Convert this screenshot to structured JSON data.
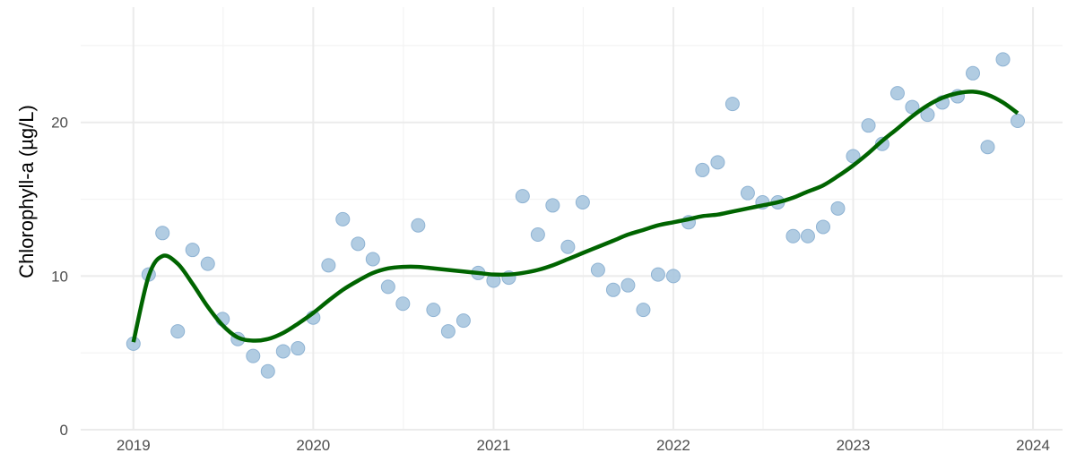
{
  "chart_data": {
    "type": "scatter",
    "title": "",
    "xlabel": "",
    "ylabel": "Chlorophyll-a (µg/L)",
    "x_axis": "date",
    "xlim": [
      "2018-09-16",
      "2024-03-01"
    ],
    "ylim": [
      0,
      27.5
    ],
    "x_ticks": [
      "2019",
      "2020",
      "2021",
      "2022",
      "2023",
      "2024"
    ],
    "y_ticks": [
      0,
      10,
      20
    ],
    "grid": true,
    "legend": "none",
    "colors": {
      "points_fill": "#a9c6df",
      "points_stroke": "#8fb3d3",
      "smooth_line": "#006400",
      "grid_major": "#ebebeb",
      "grid_minor": "#f3f3f3"
    },
    "series": [
      {
        "type": "scatter",
        "x": [
          "2019-01-01",
          "2019-02-01",
          "2019-03-01",
          "2019-04-01",
          "2019-05-01",
          "2019-06-01",
          "2019-07-01",
          "2019-08-01",
          "2019-09-01",
          "2019-10-01",
          "2019-11-01",
          "2019-12-01",
          "2020-01-01",
          "2020-02-01",
          "2020-03-01",
          "2020-04-01",
          "2020-05-01",
          "2020-06-01",
          "2020-07-01",
          "2020-08-01",
          "2020-09-01",
          "2020-10-01",
          "2020-11-01",
          "2020-12-01",
          "2021-01-01",
          "2021-02-01",
          "2021-03-01",
          "2021-04-01",
          "2021-05-01",
          "2021-06-01",
          "2021-07-01",
          "2021-08-01",
          "2021-09-01",
          "2021-10-01",
          "2021-11-01",
          "2021-12-01",
          "2022-01-01",
          "2022-02-01",
          "2022-03-01",
          "2022-04-01",
          "2022-05-01",
          "2022-06-01",
          "2022-07-01",
          "2022-08-01",
          "2022-09-01",
          "2022-10-01",
          "2022-11-01",
          "2022-12-01",
          "2023-01-01",
          "2023-02-01",
          "2023-03-01",
          "2023-04-01",
          "2023-05-01",
          "2023-06-01",
          "2023-07-01",
          "2023-08-01",
          "2023-09-01",
          "2023-10-01",
          "2023-11-01",
          "2023-12-01"
        ],
        "y": [
          5.6,
          10.1,
          12.8,
          6.4,
          11.7,
          10.8,
          7.2,
          5.9,
          4.8,
          3.8,
          5.1,
          5.3,
          7.3,
          10.7,
          13.7,
          12.1,
          11.1,
          9.3,
          8.2,
          13.3,
          7.8,
          6.4,
          7.1,
          10.2,
          9.7,
          9.9,
          15.2,
          12.7,
          14.6,
          11.9,
          14.8,
          10.4,
          9.1,
          9.4,
          7.8,
          10.1,
          10.0,
          13.5,
          16.9,
          17.4,
          21.2,
          15.4,
          14.8,
          14.8,
          12.6,
          12.6,
          13.2,
          14.4,
          17.8,
          19.8,
          18.6,
          21.9,
          21.0,
          20.5,
          21.3,
          21.7,
          23.2,
          18.4,
          24.1,
          20.1
        ]
      },
      {
        "type": "line",
        "x": [
          "2019-01-01",
          "2019-02-01",
          "2019-03-01",
          "2019-04-01",
          "2019-05-01",
          "2019-06-01",
          "2019-07-01",
          "2019-08-01",
          "2019-09-01",
          "2019-10-01",
          "2019-11-01",
          "2019-12-01",
          "2020-01-01",
          "2020-02-01",
          "2020-03-01",
          "2020-04-01",
          "2020-05-01",
          "2020-06-01",
          "2020-07-01",
          "2020-08-01",
          "2020-09-01",
          "2020-10-01",
          "2020-11-01",
          "2020-12-01",
          "2021-01-01",
          "2021-02-01",
          "2021-03-01",
          "2021-04-01",
          "2021-05-01",
          "2021-06-01",
          "2021-07-01",
          "2021-08-01",
          "2021-09-01",
          "2021-10-01",
          "2021-11-01",
          "2021-12-01",
          "2022-01-01",
          "2022-02-01",
          "2022-03-01",
          "2022-04-01",
          "2022-05-01",
          "2022-06-01",
          "2022-07-01",
          "2022-08-01",
          "2022-09-01",
          "2022-10-01",
          "2022-11-01",
          "2022-12-01",
          "2023-01-01",
          "2023-02-01",
          "2023-03-01",
          "2023-04-01",
          "2023-05-01",
          "2023-06-01",
          "2023-07-01",
          "2023-08-01",
          "2023-09-01",
          "2023-10-01",
          "2023-11-01",
          "2023-12-01"
        ],
        "y": [
          5.7,
          10.0,
          11.3,
          10.8,
          9.5,
          8.0,
          6.8,
          6.0,
          5.8,
          5.9,
          6.3,
          6.9,
          7.6,
          8.4,
          9.1,
          9.7,
          10.2,
          10.5,
          10.6,
          10.6,
          10.5,
          10.4,
          10.3,
          10.2,
          10.1,
          10.1,
          10.2,
          10.4,
          10.7,
          11.1,
          11.5,
          11.9,
          12.3,
          12.7,
          13.0,
          13.3,
          13.5,
          13.7,
          13.9,
          14.0,
          14.2,
          14.4,
          14.6,
          14.8,
          15.1,
          15.5,
          15.9,
          16.5,
          17.2,
          18.0,
          18.8,
          19.6,
          20.4,
          21.1,
          21.6,
          21.9,
          22.0,
          21.8,
          21.3,
          20.6
        ]
      }
    ]
  }
}
